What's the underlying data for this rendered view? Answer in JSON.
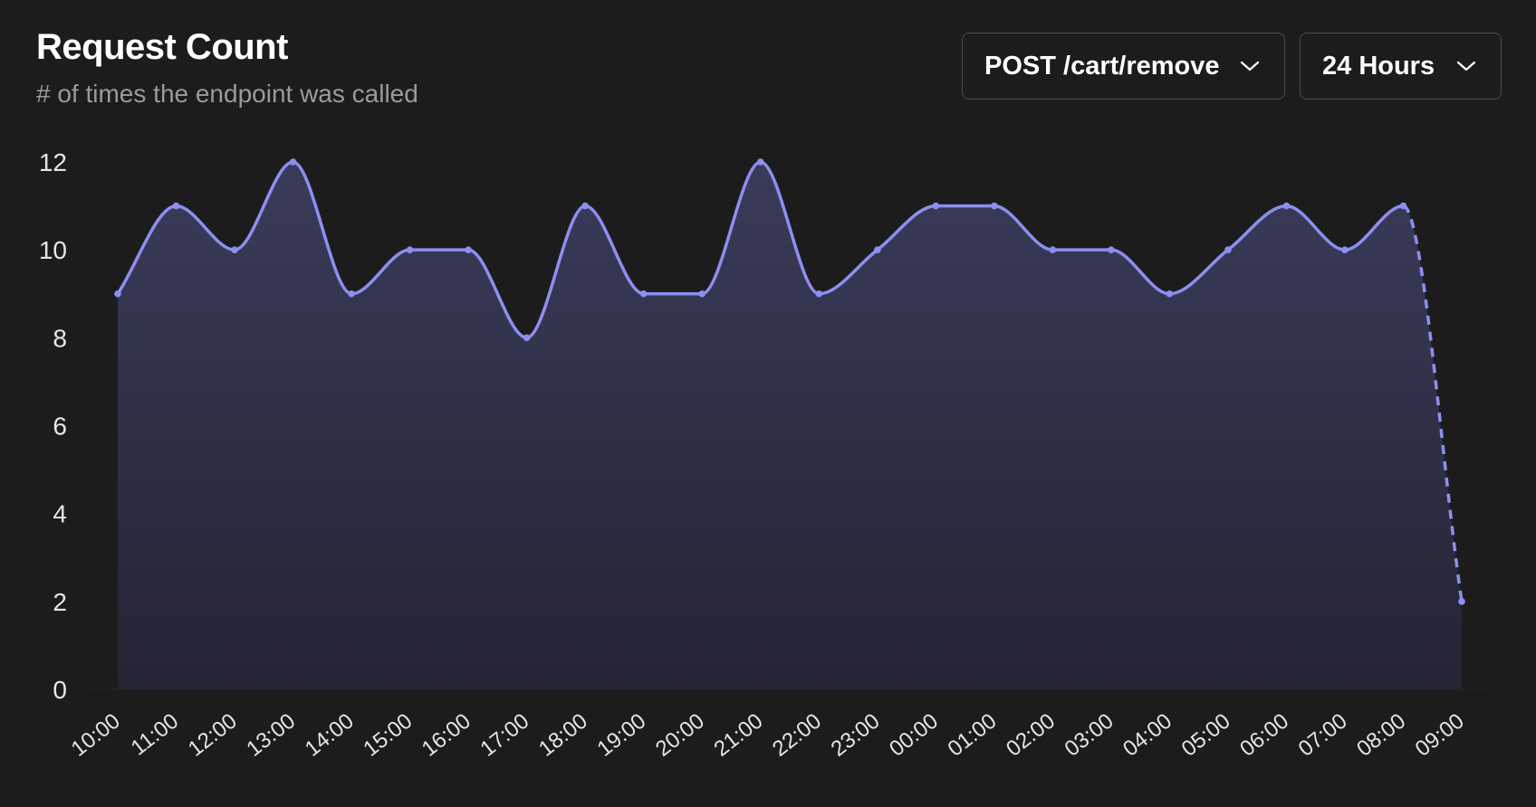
{
  "header": {
    "title": "Request Count",
    "subtitle": "# of times the endpoint was called"
  },
  "controls": {
    "endpoint_select": {
      "value": "POST /cart/remove",
      "icon": "chevron-down-icon"
    },
    "range_select": {
      "value": "24 Hours",
      "icon": "chevron-down-icon"
    }
  },
  "colors": {
    "background": "#1c1c1d",
    "line": "#8c8ff0",
    "area_top": "#3a3b5a",
    "area_bottom": "#242433",
    "axis_text": "#e6e6ea",
    "subtitle": "#9a9a9f"
  },
  "chart_data": {
    "type": "area",
    "title": "Request Count",
    "subtitle": "# of times the endpoint was called",
    "xlabel": "",
    "ylabel": "",
    "ylim": [
      0,
      12
    ],
    "y_ticks": [
      0,
      2,
      4,
      6,
      8,
      10,
      12
    ],
    "x": [
      "10:00",
      "11:00",
      "12:00",
      "13:00",
      "14:00",
      "15:00",
      "16:00",
      "17:00",
      "18:00",
      "19:00",
      "20:00",
      "21:00",
      "22:00",
      "23:00",
      "00:00",
      "01:00",
      "02:00",
      "03:00",
      "04:00",
      "05:00",
      "06:00",
      "07:00",
      "08:00",
      "09:00"
    ],
    "series": [
      {
        "values": [
          9,
          11,
          10,
          12,
          9,
          10,
          10,
          8,
          11,
          9,
          9,
          12,
          9,
          10,
          11,
          11,
          10,
          10,
          9,
          10,
          11,
          10,
          11,
          2
        ],
        "dashed_from_index": 22
      }
    ],
    "grid": false,
    "smooth": true
  }
}
